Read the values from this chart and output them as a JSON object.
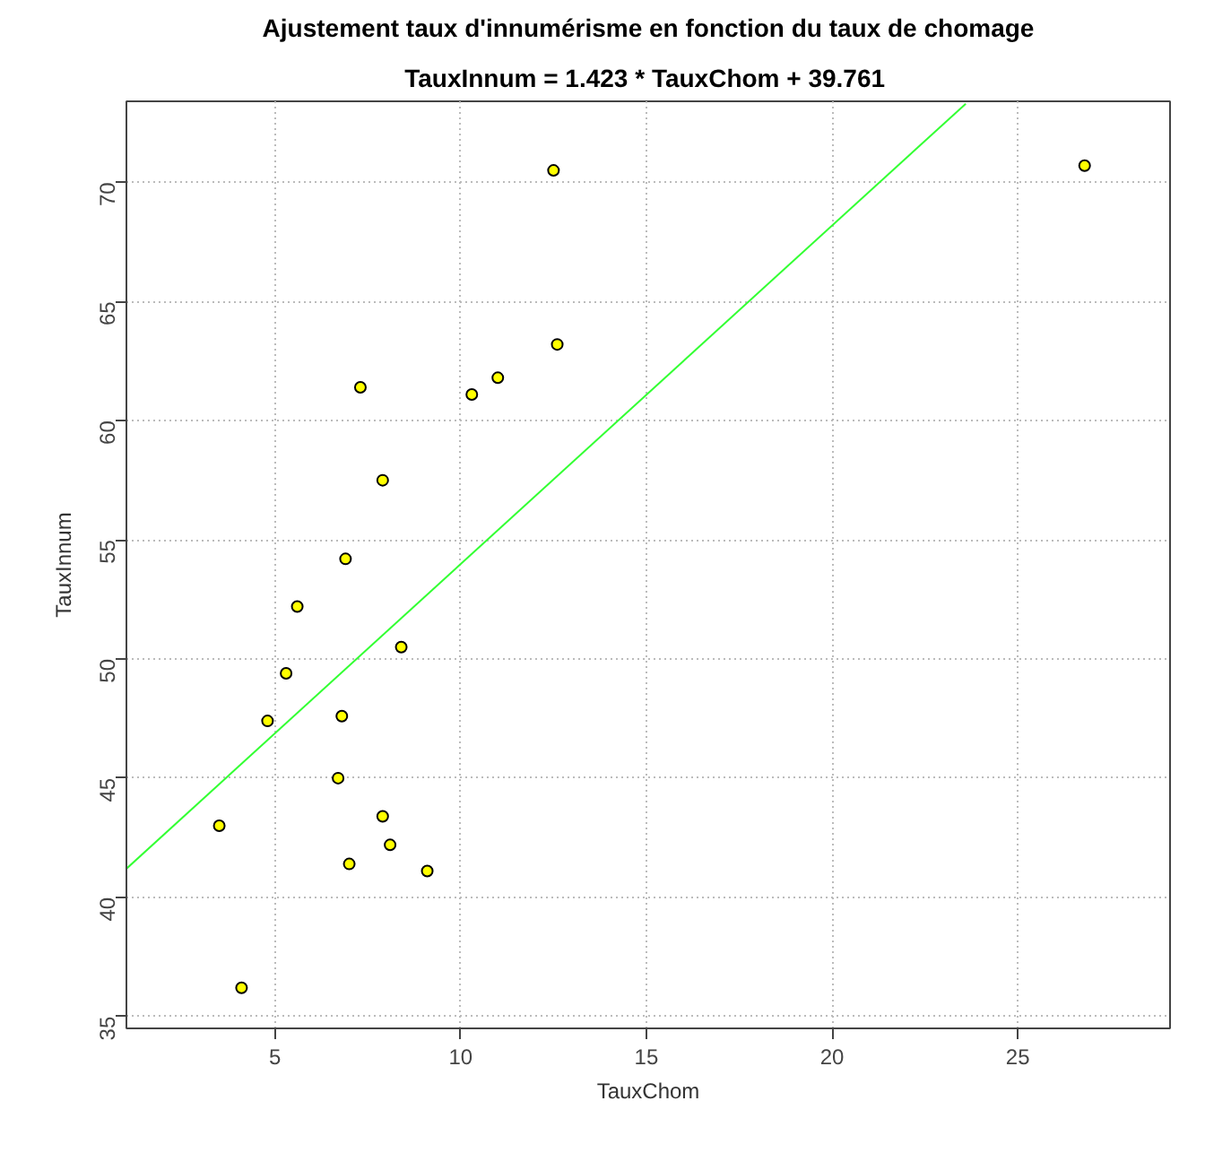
{
  "chart_data": {
    "type": "scatter",
    "title": "Ajustement taux d'innumérisme en fonction du taux de chomage",
    "subtitle": "TauxInnum = 1.423 * TauxChom +  39.761",
    "xlabel": "TauxChom",
    "ylabel": "TauxInnum",
    "xlim": [
      1.0,
      29.1
    ],
    "ylim": [
      34.5,
      73.4
    ],
    "xticks": [
      5,
      10,
      15,
      20,
      25
    ],
    "yticks": [
      35,
      40,
      45,
      50,
      55,
      60,
      65,
      70
    ],
    "grid": true,
    "series": [
      {
        "color": "#ffff00",
        "marker": "circle",
        "x": [
          12.5,
          12.6,
          7.3,
          10.3,
          11.0,
          7.9,
          6.9,
          5.6,
          8.4,
          5.3,
          4.8,
          6.8,
          6.7,
          3.5,
          7.9,
          8.1,
          7.0,
          9.1,
          4.1,
          26.8
        ],
        "values": [
          70.5,
          63.2,
          61.4,
          61.1,
          61.8,
          57.5,
          54.2,
          52.2,
          50.5,
          49.4,
          47.4,
          47.6,
          45.0,
          43.0,
          43.4,
          42.2,
          41.4,
          41.1,
          36.2,
          70.7
        ]
      },
      {
        "type": "line",
        "color": "#33ff33",
        "line_style": "solid",
        "x": [
          1.0,
          23.6
        ],
        "values": [
          41.2,
          73.3
        ]
      }
    ]
  }
}
